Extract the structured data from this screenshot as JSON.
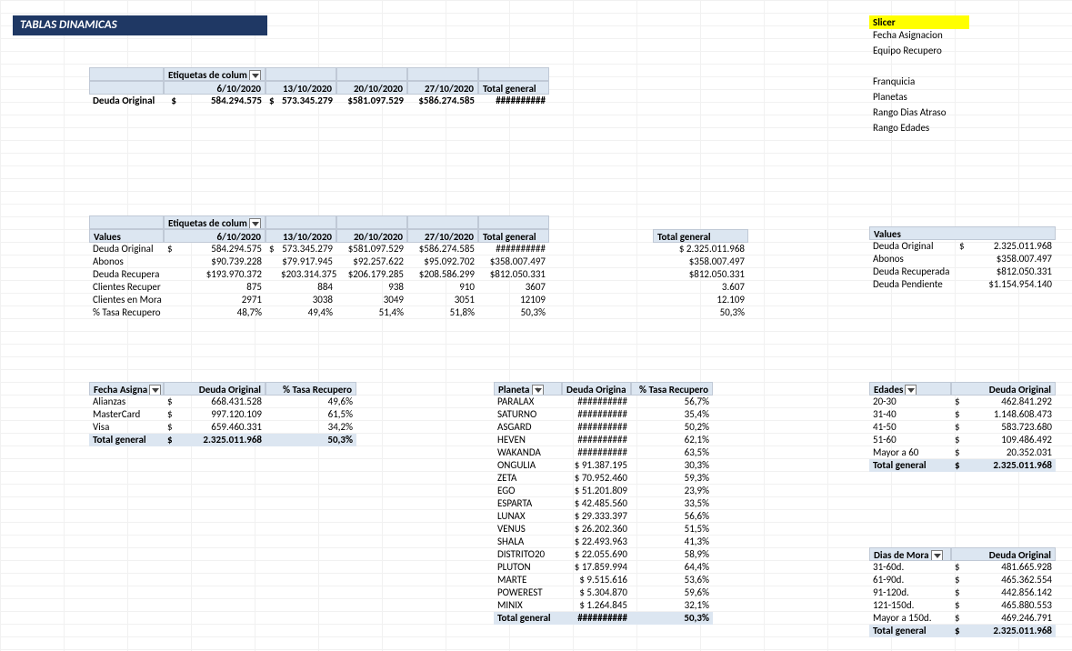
{
  "title": "TABLAS DINAMICAS",
  "colors": {
    "title_bg": "#1f3864",
    "header_bg": "#dce6f1",
    "slicer_bg": "#ffff00"
  },
  "pivot1": {
    "col_label": "Etiquetas de colum",
    "dates": [
      "6/10/2020",
      "13/10/2020",
      "20/10/2020",
      "27/10/2020"
    ],
    "total_label": "Total general",
    "row_label": "Deuda Original",
    "currency": "$",
    "values": [
      "584.294.575",
      "573.345.279",
      "$581.097.529",
      "$586.274.585"
    ],
    "total": "##########"
  },
  "pivot2": {
    "col_label": "Etiquetas de colum",
    "values_label": "Values",
    "dates": [
      "6/10/2020",
      "13/10/2020",
      "20/10/2020",
      "27/10/2020"
    ],
    "total_label": "Total general",
    "rows": [
      {
        "label": "Deuda Original",
        "c": "$",
        "v": [
          "584.294.575",
          "573.345.279",
          "$581.097.529",
          "$586.274.585",
          "##########"
        ]
      },
      {
        "label": "Abonos",
        "c": "",
        "v": [
          "$90.739.228",
          "$79.917.945",
          "$92.257.622",
          "$95.092.702",
          "$358.007.497"
        ]
      },
      {
        "label": "Deuda Recupera",
        "c": "",
        "v": [
          "$193.970.372",
          "$203.314.375",
          "$206.179.285",
          "$208.586.299",
          "$812.050.331"
        ]
      },
      {
        "label": "Clientes Recuper",
        "c": "",
        "v": [
          "875",
          "884",
          "938",
          "910",
          "3607"
        ]
      },
      {
        "label": "Clientes en Mora",
        "c": "",
        "v": [
          "2971",
          "3038",
          "3049",
          "3051",
          "12109"
        ]
      },
      {
        "label": "% Tasa Recupero",
        "c": "",
        "v": [
          "48,7%",
          "49,4%",
          "51,4%",
          "51,8%",
          "50,3%"
        ]
      }
    ]
  },
  "pivot2_side": {
    "header": "Total general",
    "values": [
      "$  2.325.011.968",
      "$358.007.497",
      "$812.050.331",
      "3.607",
      "12.109",
      "50,3%"
    ]
  },
  "pivot3": {
    "headers": [
      "Fecha Asigna",
      "Deuda Original",
      "% Tasa Recupero"
    ],
    "rows": [
      {
        "label": "Alianzas",
        "c": "$",
        "deuda": "668.431.528",
        "tasa": "49,6%"
      },
      {
        "label": "MasterCard",
        "c": "$",
        "deuda": "997.120.109",
        "tasa": "61,5%"
      },
      {
        "label": "Visa",
        "c": "$",
        "deuda": "659.460.331",
        "tasa": "34,2%"
      }
    ],
    "total": {
      "label": "Total general",
      "c": "$",
      "deuda": "2.325.011.968",
      "tasa": "50,3%"
    }
  },
  "pivot4": {
    "headers": [
      "Planeta",
      "Deuda Origina",
      "% Tasa Recupero"
    ],
    "rows": [
      {
        "p": "PARALAX",
        "d": "##########",
        "t": "56,7%"
      },
      {
        "p": "SATURNO",
        "d": "##########",
        "t": "35,4%"
      },
      {
        "p": "ASGARD",
        "d": "##########",
        "t": "50,2%"
      },
      {
        "p": "HEVEN",
        "d": "##########",
        "t": "62,1%"
      },
      {
        "p": "WAKANDA",
        "d": "##########",
        "t": "63,5%"
      },
      {
        "p": "ONGULIA",
        "d": "$ 91.387.195",
        "t": "30,3%"
      },
      {
        "p": "ZETA",
        "d": "$ 70.952.460",
        "t": "59,3%"
      },
      {
        "p": "EGO",
        "d": "$ 51.201.809",
        "t": "23,9%"
      },
      {
        "p": "ESPARTA",
        "d": "$ 42.485.560",
        "t": "33,5%"
      },
      {
        "p": "LUNAX",
        "d": "$ 29.333.397",
        "t": "56,6%"
      },
      {
        "p": "VENUS",
        "d": "$ 26.202.360",
        "t": "51,5%"
      },
      {
        "p": "SHALA",
        "d": "$ 22.493.963",
        "t": "41,3%"
      },
      {
        "p": "DISTRITO20",
        "d": "$ 22.055.690",
        "t": "58,9%"
      },
      {
        "p": "PLUTON",
        "d": "$ 17.859.994",
        "t": "64,4%"
      },
      {
        "p": "MARTE",
        "d": "$   9.515.616",
        "t": "53,6%"
      },
      {
        "p": "POWEREST",
        "d": "$   5.304.870",
        "t": "59,6%"
      },
      {
        "p": "MINIX",
        "d": "$   1.264.845",
        "t": "32,1%"
      }
    ],
    "total": {
      "label": "Total general",
      "d": "##########",
      "t": "50,3%"
    }
  },
  "slicer": {
    "header": "Slicer",
    "items": [
      "Fecha Asignacion",
      "Equipo Recupero",
      "",
      "Franquicia",
      "Planetas",
      "Rango Dias Atraso",
      "Rango Edades"
    ]
  },
  "values_box": {
    "header": "Values",
    "rows": [
      {
        "l": "Deuda Original",
        "c": "$",
        "v": "2.325.011.968"
      },
      {
        "l": "Abonos",
        "c": "",
        "v": "$358.007.497"
      },
      {
        "l": "Deuda Recuperada",
        "c": "",
        "v": "$812.050.331"
      },
      {
        "l": "Deuda Pendiente",
        "c": "",
        "v": "$1.154.954.140"
      }
    ]
  },
  "edades": {
    "headers": [
      "Edades",
      "Deuda Original"
    ],
    "rows": [
      {
        "l": "20-30",
        "c": "$",
        "v": "462.841.292"
      },
      {
        "l": "31-40",
        "c": "$",
        "v": "1.148.608.473"
      },
      {
        "l": "41-50",
        "c": "$",
        "v": "583.723.680"
      },
      {
        "l": "51-60",
        "c": "$",
        "v": "109.486.492"
      },
      {
        "l": "Mayor a 60",
        "c": "$",
        "v": "20.352.031"
      }
    ],
    "total": {
      "l": "Total general",
      "c": "$",
      "v": "2.325.011.968"
    }
  },
  "mora": {
    "headers": [
      "Dias de Mora",
      "Deuda Original"
    ],
    "rows": [
      {
        "l": "31-60d.",
        "c": "$",
        "v": "481.665.928"
      },
      {
        "l": "61-90d.",
        "c": "$",
        "v": "465.362.554"
      },
      {
        "l": "91-120d.",
        "c": "$",
        "v": "442.856.142"
      },
      {
        "l": "121-150d.",
        "c": "$",
        "v": "465.880.553"
      },
      {
        "l": "Mayor a 150d.",
        "c": "$",
        "v": "469.246.791"
      }
    ],
    "total": {
      "l": "Total general",
      "c": "$",
      "v": "2.325.011.968"
    }
  }
}
